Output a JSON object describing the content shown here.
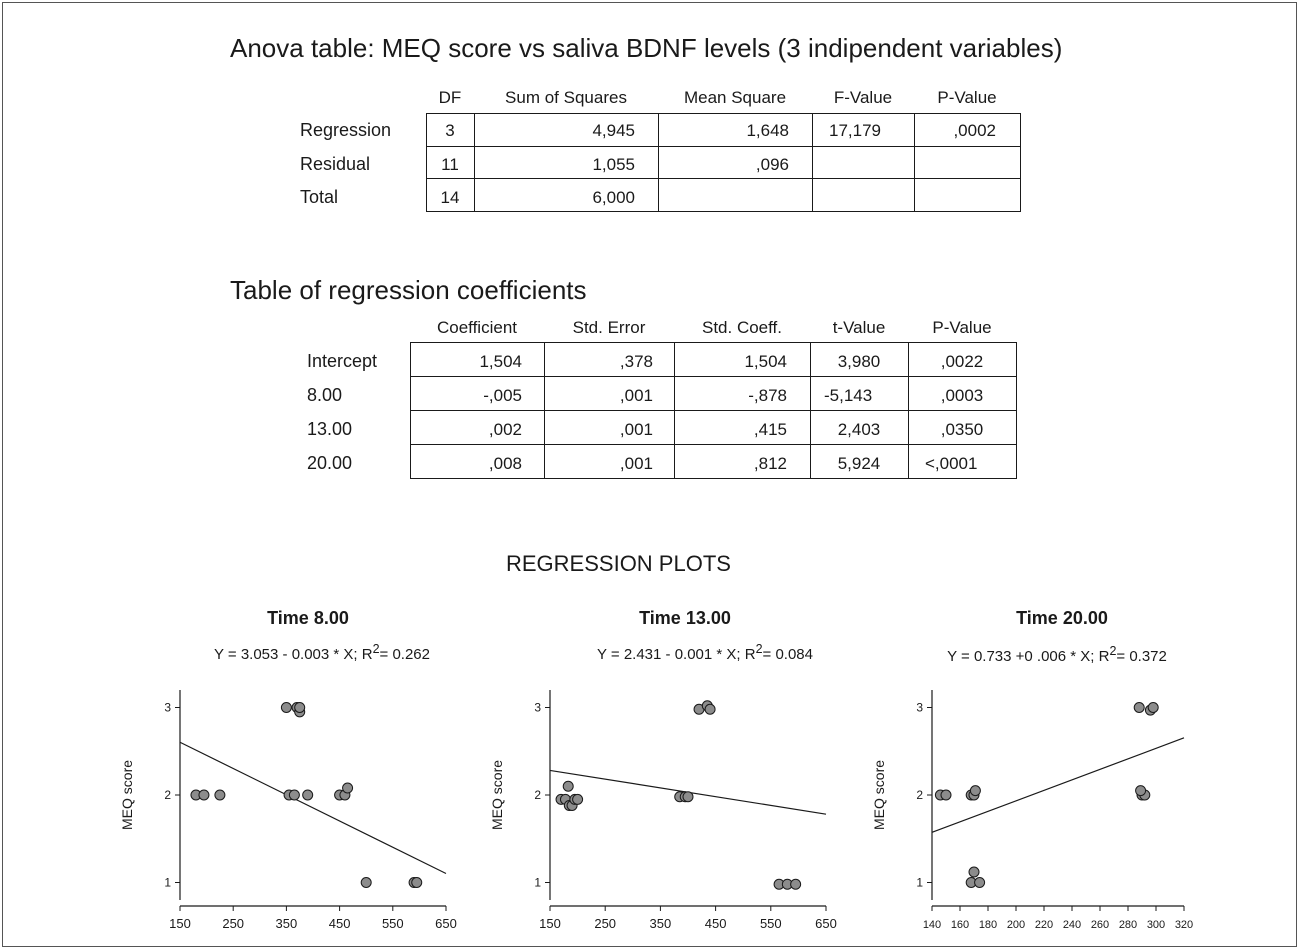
{
  "anova": {
    "title": "Anova table: MEQ score vs saliva BDNF levels (3  indipendent  variables)",
    "columns": [
      "DF",
      "Sum of Squares",
      "Mean Square",
      "F-Value",
      "P-Value"
    ],
    "rows": [
      {
        "label": "Regression",
        "values": [
          "3",
          "4,945",
          "1,648",
          "17,179",
          ",0002"
        ]
      },
      {
        "label": "Residual",
        "values": [
          "11",
          "1,055",
          ",096",
          "",
          ""
        ]
      },
      {
        "label": "Total",
        "values": [
          "14",
          "6,000",
          "",
          "",
          ""
        ]
      }
    ]
  },
  "coef": {
    "title": "Table of regression coefficients",
    "columns": [
      "Coefficient",
      "Std. Error",
      "Std. Coeff.",
      "t-Value",
      "P-Value"
    ],
    "rows": [
      {
        "label": "Intercept",
        "values": [
          "1,504",
          ",378",
          "1,504",
          "3,980",
          ",0022"
        ]
      },
      {
        "label": "8.00",
        "values": [
          "-,005",
          ",001",
          "-,878",
          "-5,143",
          ",0003"
        ]
      },
      {
        "label": "13.00",
        "values": [
          ",002",
          ",001",
          ",415",
          "2,403",
          ",0350"
        ]
      },
      {
        "label": "20.00",
        "values": [
          ",008",
          ",001",
          ",812",
          "5,924",
          "<,0001"
        ]
      }
    ]
  },
  "plots_heading": "REGRESSION PLOTS",
  "chart_data": [
    {
      "type": "scatter",
      "title": "Time 8.00",
      "equation_prefix": "Y = 3.053 - 0.003 * X; R",
      "equation_sup": "2",
      "equation_suffix": "= 0.262",
      "xlabel": "",
      "ylabel": "MEQ score",
      "xlim": [
        150,
        650
      ],
      "ylim": [
        0.8,
        3.2
      ],
      "xticks": [
        150,
        250,
        350,
        450,
        550,
        650
      ],
      "yticks": [
        1,
        2,
        3
      ],
      "x": [
        180,
        195,
        225,
        350,
        355,
        365,
        370,
        375,
        375,
        390,
        450,
        460,
        465,
        500,
        590,
        595
      ],
      "y": [
        2,
        2,
        2,
        3,
        2,
        2,
        3,
        2.95,
        3,
        2,
        2,
        2,
        2.08,
        1,
        1,
        1
      ],
      "fit": {
        "intercept": 3.053,
        "slope": -0.003
      }
    },
    {
      "type": "scatter",
      "title": "Time 13.00",
      "equation_prefix": "Y = 2.431 - 0.001 * X; R",
      "equation_sup": "2",
      "equation_suffix": "= 0.084",
      "xlabel": "",
      "ylabel": "MEQ score",
      "xlim": [
        150,
        650
      ],
      "ylim": [
        0.8,
        3.2
      ],
      "xticks": [
        150,
        250,
        350,
        450,
        550,
        650
      ],
      "yticks": [
        1,
        2,
        3
      ],
      "x": [
        170,
        178,
        183,
        185,
        190,
        195,
        200,
        385,
        395,
        400,
        420,
        435,
        440,
        565,
        580,
        595
      ],
      "y": [
        1.95,
        1.95,
        2.1,
        1.88,
        1.88,
        1.95,
        1.95,
        1.98,
        1.98,
        1.98,
        2.98,
        3.02,
        2.98,
        0.98,
        0.98,
        0.98
      ],
      "fit": {
        "intercept": 2.431,
        "slope": -0.001
      }
    },
    {
      "type": "scatter",
      "title": "Time 20.00",
      "equation_prefix": "Y = 0.733 +0 .006 * X; R",
      "equation_sup": "2",
      "equation_suffix": "= 0.372",
      "xlabel": "",
      "ylabel": "MEQ score",
      "xlim": [
        140,
        320
      ],
      "ylim": [
        0.8,
        3.2
      ],
      "xticks": [
        140,
        160,
        180,
        200,
        220,
        240,
        260,
        280,
        300,
        320
      ],
      "yticks": [
        1,
        2,
        3
      ],
      "x": [
        146,
        150,
        168,
        170,
        171,
        170,
        168,
        174,
        288,
        290,
        292,
        289,
        296,
        298
      ],
      "y": [
        2,
        2,
        2,
        2,
        2.05,
        1.12,
        1,
        1,
        3,
        2,
        2,
        2.05,
        2.97,
        3
      ],
      "fit": {
        "intercept": 0.733,
        "slope": 0.006
      }
    }
  ]
}
